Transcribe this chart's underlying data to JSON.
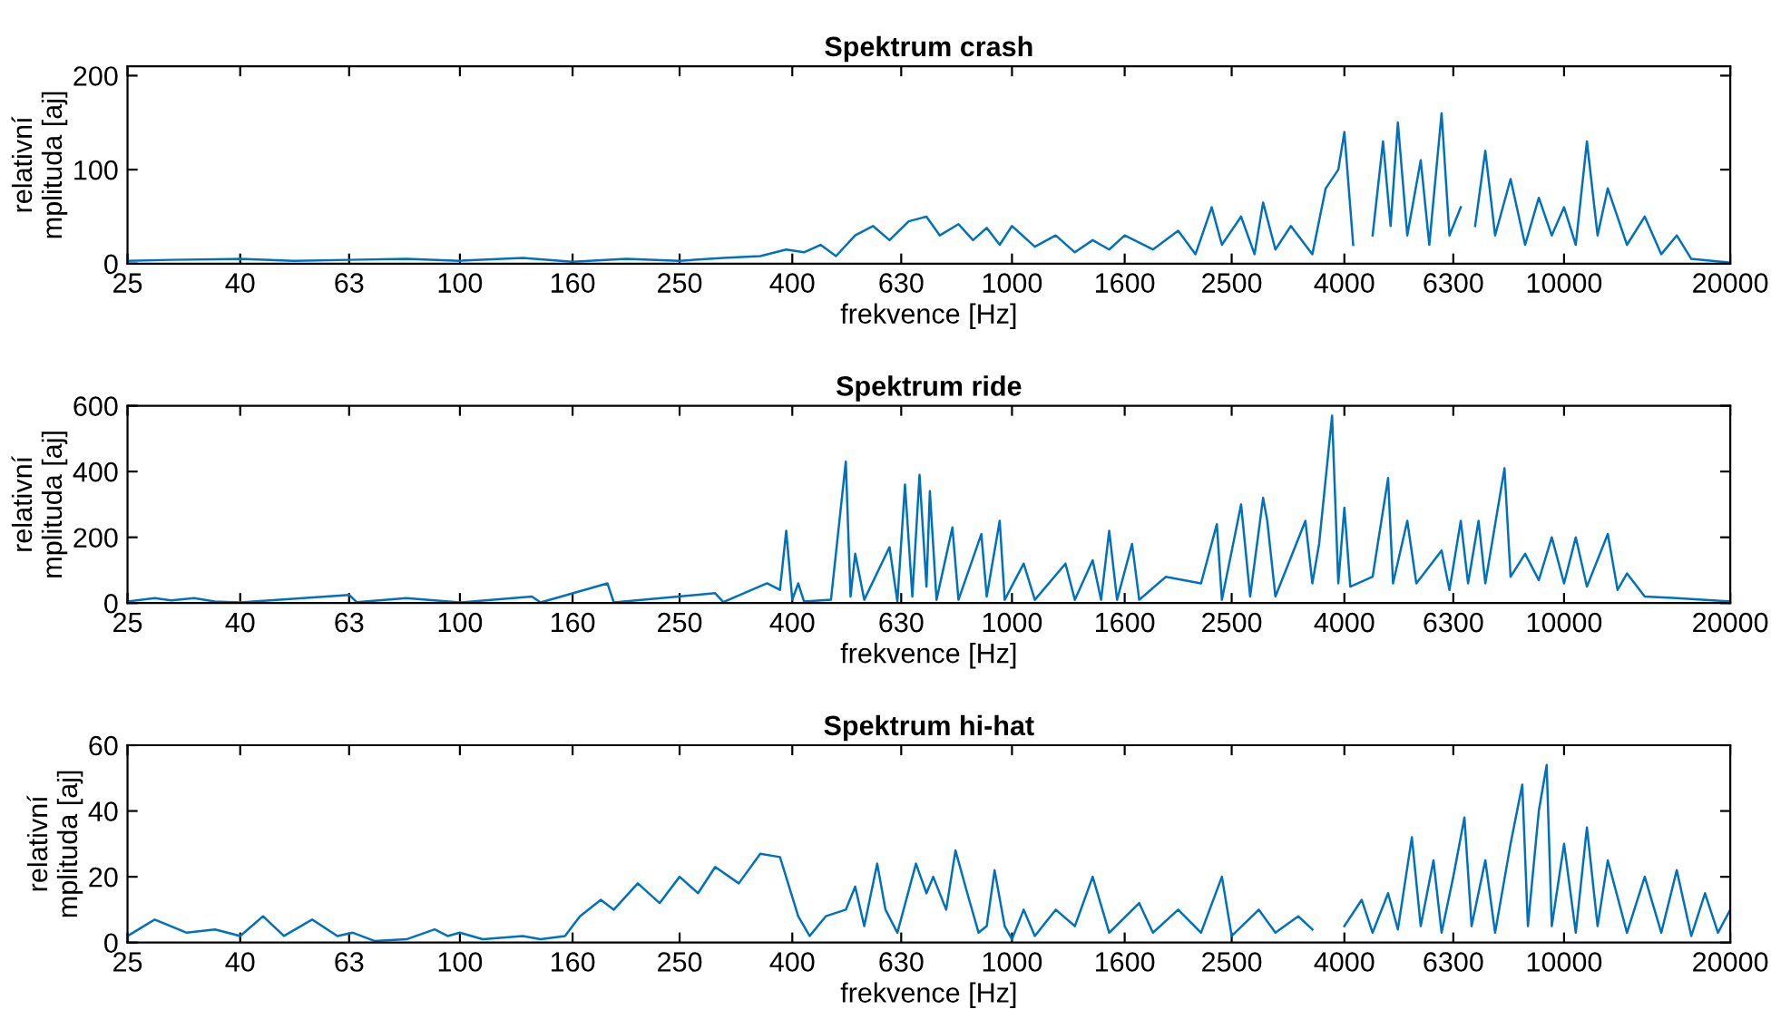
{
  "chart_data": [
    {
      "type": "line",
      "title": "Spektrum crash",
      "xlabel": "frekvence [Hz]",
      "ylabel": "relativní\nmplituda [aj]",
      "log": "x",
      "xlim": [
        25,
        20000
      ],
      "xticks": [
        25,
        40,
        63,
        100,
        160,
        250,
        400,
        630,
        1000,
        1600,
        2500,
        4000,
        6300,
        10000,
        20000
      ],
      "ylim": [
        0,
        210
      ],
      "yticks": [
        0,
        100,
        200
      ],
      "series": [
        {
          "color": "#0072bd",
          "x": [
            25,
            30,
            40,
            50,
            63,
            80,
            100,
            130,
            160,
            200,
            250,
            300,
            350,
            390,
            420,
            450,
            480,
            520,
            560,
            600,
            650,
            700,
            740,
            800,
            850,
            900,
            950,
            1000,
            1100,
            1200,
            1300,
            1400,
            1500,
            1600,
            1800,
            2000,
            2150,
            2300,
            2400,
            2600,
            2750,
            2850,
            3000,
            3200,
            3500,
            3700,
            3900,
            4000,
            4150,
            4400,
            4500,
            4700,
            4850,
            5000,
            5200,
            5500,
            5700,
            6000,
            6200,
            6500,
            6700,
            6900,
            7200,
            7500,
            8000,
            8500,
            9000,
            9500,
            10000,
            10500,
            11000,
            11500,
            12000,
            13000,
            14000,
            15000,
            16000,
            17000,
            20000
          ],
          "values": [
            3,
            4,
            5,
            3,
            4,
            5,
            3,
            6,
            2,
            5,
            3,
            6,
            8,
            15,
            12,
            20,
            8,
            30,
            40,
            25,
            45,
            50,
            30,
            42,
            25,
            38,
            20,
            40,
            18,
            30,
            12,
            25,
            15,
            30,
            15,
            35,
            10,
            60,
            20,
            50,
            10,
            65,
            15,
            40,
            10,
            80,
            100,
            140,
            20,
            null,
            30,
            130,
            40,
            150,
            30,
            110,
            20,
            160,
            30,
            60,
            null,
            40,
            120,
            30,
            90,
            20,
            70,
            30,
            60,
            20,
            130,
            30,
            80,
            20,
            50,
            10,
            30,
            5,
            1
          ]
        }
      ]
    },
    {
      "type": "line",
      "title": "Spektrum ride",
      "xlabel": "frekvence [Hz]",
      "ylabel": "relativní\nmplituda [aj]",
      "log": "x",
      "xlim": [
        25,
        20000
      ],
      "xticks": [
        25,
        40,
        63,
        100,
        160,
        250,
        400,
        630,
        1000,
        1600,
        2500,
        4000,
        6300,
        10000,
        20000
      ],
      "ylim": [
        0,
        600
      ],
      "yticks": [
        0,
        200,
        400,
        600
      ],
      "series": [
        {
          "color": "#0072bd",
          "x": [
            25,
            28,
            30,
            33,
            36,
            40,
            63,
            65,
            80,
            100,
            135,
            140,
            185,
            190,
            290,
            300,
            360,
            380,
            390,
            400,
            410,
            420,
            470,
            500,
            510,
            520,
            540,
            600,
            620,
            640,
            660,
            680,
            700,
            710,
            730,
            780,
            800,
            880,
            900,
            950,
            970,
            1050,
            1100,
            1250,
            1300,
            1400,
            1450,
            1500,
            1550,
            1650,
            1700,
            1900,
            2200,
            2350,
            2400,
            2600,
            2700,
            2850,
            2900,
            3000,
            3400,
            3500,
            3600,
            3800,
            3900,
            4000,
            4100,
            4500,
            4800,
            4900,
            5200,
            5400,
            6000,
            6200,
            6500,
            6700,
            7000,
            7200,
            7800,
            8000,
            8500,
            9000,
            9500,
            10000,
            10500,
            11000,
            12000,
            12500,
            13000,
            14000,
            16000,
            20000
          ],
          "values": [
            5,
            15,
            8,
            15,
            5,
            2,
            25,
            3,
            15,
            2,
            20,
            2,
            60,
            2,
            30,
            3,
            60,
            40,
            220,
            10,
            60,
            5,
            10,
            430,
            20,
            150,
            10,
            170,
            5,
            360,
            20,
            390,
            50,
            340,
            10,
            230,
            10,
            210,
            20,
            250,
            10,
            120,
            10,
            120,
            10,
            130,
            10,
            220,
            10,
            180,
            10,
            80,
            60,
            240,
            10,
            300,
            20,
            320,
            250,
            20,
            250,
            60,
            180,
            570,
            60,
            290,
            50,
            80,
            380,
            60,
            250,
            60,
            160,
            40,
            250,
            60,
            250,
            60,
            410,
            80,
            150,
            70,
            200,
            60,
            200,
            50,
            210,
            40,
            90,
            20,
            15,
            5
          ]
        }
      ]
    },
    {
      "type": "line",
      "title": "Spektrum hi-hat",
      "xlabel": "frekvence [Hz]",
      "ylabel": "relativní\nmplituda [aj]",
      "log": "x",
      "xlim": [
        25,
        20000
      ],
      "xticks": [
        25,
        40,
        63,
        100,
        160,
        250,
        400,
        630,
        1000,
        1600,
        2500,
        4000,
        6300,
        10000,
        20000
      ],
      "ylim": [
        0,
        60
      ],
      "yticks": [
        0,
        20,
        40,
        60
      ],
      "series": [
        {
          "color": "#0072bd",
          "x": [
            25,
            28,
            32,
            36,
            40,
            44,
            48,
            54,
            60,
            64,
            70,
            80,
            90,
            95,
            100,
            110,
            130,
            140,
            155,
            165,
            180,
            190,
            210,
            230,
            250,
            270,
            290,
            320,
            350,
            380,
            410,
            430,
            460,
            500,
            520,
            540,
            570,
            590,
            620,
            670,
            700,
            720,
            760,
            790,
            830,
            870,
            900,
            930,
            970,
            1000,
            1050,
            1100,
            1200,
            1300,
            1400,
            1500,
            1700,
            1800,
            2000,
            2200,
            2400,
            2500,
            2800,
            3000,
            3300,
            3500,
            3900,
            4000,
            4300,
            4500,
            4800,
            5000,
            5300,
            5500,
            5800,
            6000,
            6300,
            6600,
            6800,
            7200,
            7500,
            8000,
            8400,
            8600,
            9000,
            9300,
            9500,
            10000,
            10500,
            11000,
            11500,
            12000,
            13000,
            14000,
            15000,
            16000,
            17000,
            18000,
            19000,
            20000
          ],
          "values": [
            2,
            7,
            3,
            4,
            2,
            8,
            2,
            7,
            2,
            3,
            0.5,
            1,
            4,
            2,
            3,
            1,
            2,
            1,
            2,
            8,
            13,
            10,
            18,
            12,
            20,
            15,
            23,
            18,
            27,
            26,
            8,
            2,
            8,
            10,
            17,
            5,
            24,
            10,
            3,
            24,
            15,
            20,
            10,
            28,
            15,
            3,
            5,
            22,
            5,
            1,
            10,
            2,
            10,
            5,
            20,
            3,
            12,
            3,
            10,
            3,
            20,
            2,
            10,
            3,
            8,
            4,
            null,
            5,
            13,
            3,
            15,
            4,
            32,
            5,
            25,
            3,
            20,
            38,
            5,
            25,
            3,
            30,
            48,
            5,
            40,
            54,
            5,
            30,
            3,
            35,
            5,
            25,
            3,
            20,
            3,
            22,
            2,
            15,
            3,
            10
          ]
        }
      ]
    }
  ]
}
